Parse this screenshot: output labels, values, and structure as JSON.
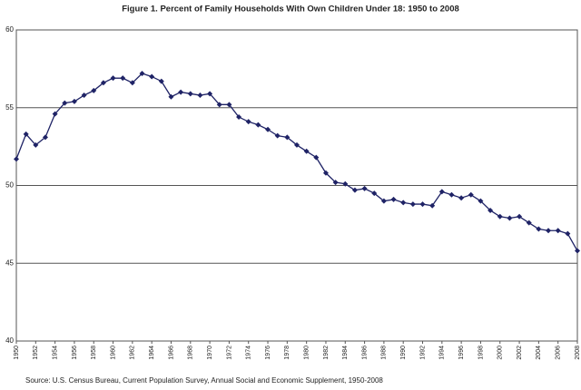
{
  "chart_data": {
    "type": "line",
    "title": "Figure 1. Percent of Family Households With Own Children Under 18: 1950 to 2008",
    "source": "Source: U.S. Census Bureau, Current Population Survey, Annual Social and Economic Supplement, 1950-2008",
    "x": [
      1950,
      1951,
      1952,
      1953,
      1954,
      1955,
      1956,
      1957,
      1958,
      1959,
      1960,
      1961,
      1962,
      1963,
      1964,
      1965,
      1966,
      1967,
      1968,
      1969,
      1970,
      1971,
      1972,
      1973,
      1974,
      1975,
      1976,
      1977,
      1978,
      1979,
      1980,
      1981,
      1982,
      1983,
      1984,
      1985,
      1986,
      1987,
      1988,
      1989,
      1990,
      1991,
      1992,
      1993,
      1994,
      1995,
      1996,
      1997,
      1998,
      1999,
      2000,
      2001,
      2002,
      2003,
      2004,
      2005,
      2006,
      2007,
      2008
    ],
    "series": [
      {
        "color": "#1f2366",
        "values": [
          51.7,
          53.3,
          52.6,
          53.1,
          54.6,
          55.3,
          55.4,
          55.8,
          56.1,
          56.6,
          56.9,
          56.9,
          56.6,
          57.2,
          57.0,
          56.7,
          55.7,
          56.0,
          55.9,
          55.8,
          55.9,
          55.2,
          55.2,
          54.4,
          54.1,
          53.9,
          53.6,
          53.2,
          53.1,
          52.6,
          52.2,
          51.8,
          50.8,
          50.2,
          50.1,
          49.7,
          49.8,
          49.5,
          49.0,
          49.1,
          48.9,
          48.8,
          48.8,
          48.7,
          49.6,
          49.4,
          49.2,
          49.4,
          49.0,
          48.4,
          48.0,
          47.9,
          48.0,
          47.6,
          47.2,
          47.1,
          47.1,
          46.9,
          45.8
        ]
      }
    ],
    "xlim": [
      1950,
      2008
    ],
    "xticks": [
      1950,
      1952,
      1954,
      1956,
      1958,
      1960,
      1962,
      1964,
      1966,
      1968,
      1970,
      1972,
      1974,
      1976,
      1978,
      1980,
      1982,
      1984,
      1986,
      1988,
      1990,
      1992,
      1994,
      1996,
      1998,
      2000,
      2002,
      2004,
      2006,
      2008
    ],
    "ylim": [
      40,
      60
    ],
    "yticks": [
      40,
      45,
      50,
      55,
      60
    ],
    "grid": true
  }
}
